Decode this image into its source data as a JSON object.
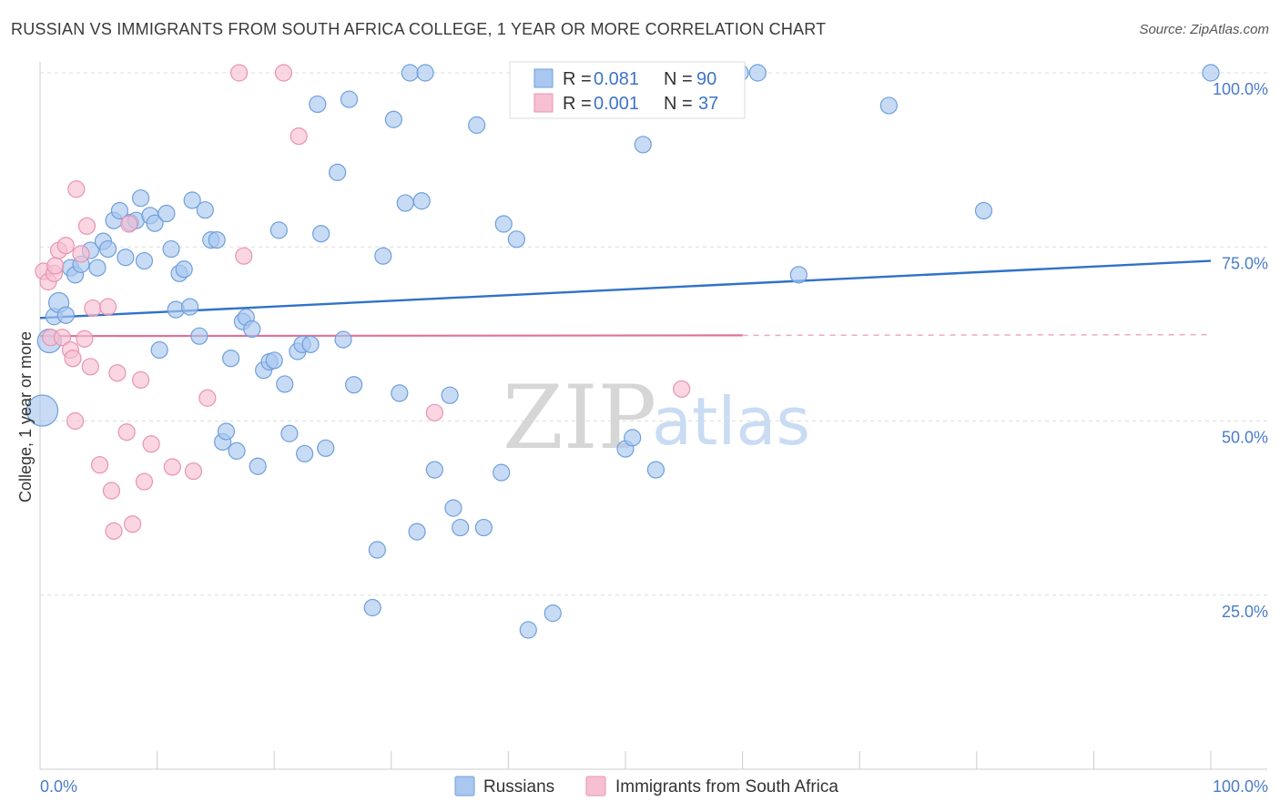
{
  "title": "RUSSIAN VS IMMIGRANTS FROM SOUTH AFRICA COLLEGE, 1 YEAR OR MORE CORRELATION CHART",
  "source": "Source: ZipAtlas.com",
  "watermark": {
    "zip": "ZIP",
    "atlas": "atlas"
  },
  "colors": {
    "blue_fill": "#a9c7ef",
    "blue_stroke": "#6f9fdc",
    "blue_line": "#2f72c9",
    "pink_fill": "#f6c0d2",
    "pink_stroke": "#e993b0",
    "pink_line": "#e0709a",
    "grid": "#dddddd",
    "axis_text": "#4a7cc9"
  },
  "legend": {
    "rows": [
      {
        "r_label": "R =",
        "r_value": "0.081",
        "n_label": "N =",
        "n_value": "90"
      },
      {
        "r_label": "R =",
        "r_value": "0.001",
        "n_label": "N =",
        "n_value": "37"
      }
    ]
  },
  "chart_data": {
    "type": "scatter",
    "title": "RUSSIAN VS IMMIGRANTS FROM SOUTH AFRICA COLLEGE, 1 YEAR OR MORE CORRELATION CHART",
    "xlabel": "",
    "ylabel": "College, 1 year or more",
    "xlim": [
      0,
      100
    ],
    "ylim": [
      0,
      100
    ],
    "x_tick_labels": [
      "0.0%",
      "100.0%"
    ],
    "y_tick_labels": [
      "25.0%",
      "50.0%",
      "75.0%",
      "100.0%"
    ],
    "y_ticks": [
      25,
      50,
      75,
      100
    ],
    "grid": true,
    "legend_position": "bottom",
    "series": [
      {
        "name": "Russians",
        "color": "#a9c7ef",
        "trend": {
          "x": [
            0,
            100
          ],
          "y": [
            64.8,
            73.0
          ]
        },
        "points": [
          [
            0.2,
            51.5
          ],
          [
            0.8,
            61.5
          ],
          [
            1.2,
            65.0
          ],
          [
            1.6,
            67.0
          ],
          [
            2.2,
            65.2
          ],
          [
            2.6,
            72.0
          ],
          [
            3.0,
            71.0
          ],
          [
            3.5,
            72.5
          ],
          [
            4.3,
            74.5
          ],
          [
            4.9,
            72.0
          ],
          [
            5.4,
            75.8
          ],
          [
            5.8,
            74.7
          ],
          [
            6.3,
            78.8
          ],
          [
            6.8,
            80.2
          ],
          [
            7.3,
            73.5
          ],
          [
            7.7,
            78.5
          ],
          [
            8.2,
            78.8
          ],
          [
            8.6,
            82.0
          ],
          [
            8.9,
            73.0
          ],
          [
            9.4,
            79.5
          ],
          [
            9.8,
            78.4
          ],
          [
            10.2,
            60.2
          ],
          [
            10.8,
            79.8
          ],
          [
            11.2,
            74.7
          ],
          [
            11.6,
            66.0
          ],
          [
            11.9,
            71.2
          ],
          [
            12.3,
            71.8
          ],
          [
            12.8,
            66.4
          ],
          [
            13.0,
            81.7
          ],
          [
            13.6,
            62.2
          ],
          [
            14.1,
            80.3
          ],
          [
            14.6,
            76.0
          ],
          [
            15.1,
            76.0
          ],
          [
            15.6,
            47.0
          ],
          [
            15.9,
            48.5
          ],
          [
            16.3,
            59.0
          ],
          [
            16.8,
            45.7
          ],
          [
            17.3,
            64.3
          ],
          [
            17.6,
            64.9
          ],
          [
            18.1,
            63.2
          ],
          [
            18.6,
            43.5
          ],
          [
            19.1,
            57.3
          ],
          [
            19.6,
            58.5
          ],
          [
            20.0,
            58.7
          ],
          [
            20.4,
            77.4
          ],
          [
            20.9,
            55.3
          ],
          [
            21.3,
            48.2
          ],
          [
            22.0,
            60.0
          ],
          [
            22.4,
            61.0
          ],
          [
            22.6,
            45.3
          ],
          [
            23.1,
            61.0
          ],
          [
            23.7,
            95.5
          ],
          [
            24.0,
            76.9
          ],
          [
            24.4,
            46.1
          ],
          [
            25.4,
            85.7
          ],
          [
            25.9,
            61.7
          ],
          [
            26.4,
            96.2
          ],
          [
            26.8,
            55.2
          ],
          [
            28.4,
            23.2
          ],
          [
            28.8,
            31.5
          ],
          [
            29.3,
            73.7
          ],
          [
            30.2,
            93.3
          ],
          [
            30.7,
            54.0
          ],
          [
            31.2,
            81.3
          ],
          [
            31.6,
            100.0
          ],
          [
            32.2,
            34.1
          ],
          [
            32.6,
            81.6
          ],
          [
            32.9,
            100.0
          ],
          [
            33.7,
            43.0
          ],
          [
            35.0,
            53.7
          ],
          [
            35.3,
            37.5
          ],
          [
            35.9,
            34.7
          ],
          [
            37.3,
            92.5
          ],
          [
            37.9,
            34.7
          ],
          [
            39.4,
            42.6
          ],
          [
            39.6,
            78.3
          ],
          [
            40.7,
            76.1
          ],
          [
            41.7,
            20.0
          ],
          [
            43.8,
            22.4
          ],
          [
            47.0,
            100.0
          ],
          [
            50.0,
            46.0
          ],
          [
            50.6,
            47.6
          ],
          [
            51.5,
            89.7
          ],
          [
            52.6,
            43.0
          ],
          [
            59.8,
            100.0
          ],
          [
            61.3,
            100.0
          ],
          [
            64.8,
            71.0
          ],
          [
            72.5,
            95.3
          ],
          [
            80.6,
            80.2
          ],
          [
            100.0,
            100.0
          ]
        ]
      },
      {
        "name": "Immigrants from South Africa",
        "color": "#f6c0d2",
        "trend": {
          "x": [
            0,
            60
          ],
          "y": [
            62.2,
            62.3
          ]
        },
        "trend_extension": {
          "x": [
            60,
            100
          ],
          "y": [
            62.3,
            62.4
          ]
        },
        "points": [
          [
            0.3,
            71.5
          ],
          [
            0.7,
            70.0
          ],
          [
            0.9,
            62.0
          ],
          [
            1.2,
            71.2
          ],
          [
            1.3,
            72.3
          ],
          [
            1.6,
            74.5
          ],
          [
            1.9,
            62.0
          ],
          [
            2.2,
            75.2
          ],
          [
            2.6,
            60.2
          ],
          [
            2.8,
            59.0
          ],
          [
            3.0,
            50.0
          ],
          [
            3.1,
            83.3
          ],
          [
            3.5,
            74.0
          ],
          [
            3.8,
            61.8
          ],
          [
            4.0,
            78.0
          ],
          [
            4.3,
            57.8
          ],
          [
            4.5,
            66.2
          ],
          [
            5.1,
            43.7
          ],
          [
            5.8,
            66.4
          ],
          [
            6.1,
            40.0
          ],
          [
            6.3,
            34.2
          ],
          [
            6.6,
            56.9
          ],
          [
            7.4,
            48.4
          ],
          [
            7.6,
            78.3
          ],
          [
            7.9,
            35.2
          ],
          [
            8.6,
            55.9
          ],
          [
            8.9,
            41.3
          ],
          [
            9.5,
            46.7
          ],
          [
            11.3,
            43.4
          ],
          [
            13.1,
            42.8
          ],
          [
            14.3,
            53.3
          ],
          [
            17.0,
            100.0
          ],
          [
            17.4,
            73.7
          ],
          [
            20.8,
            100.0
          ],
          [
            22.1,
            90.9
          ],
          [
            33.7,
            51.2
          ],
          [
            54.8,
            54.6
          ]
        ]
      }
    ]
  },
  "bottom_legend": [
    {
      "label": "Russians"
    },
    {
      "label": "Immigrants from South Africa"
    }
  ]
}
